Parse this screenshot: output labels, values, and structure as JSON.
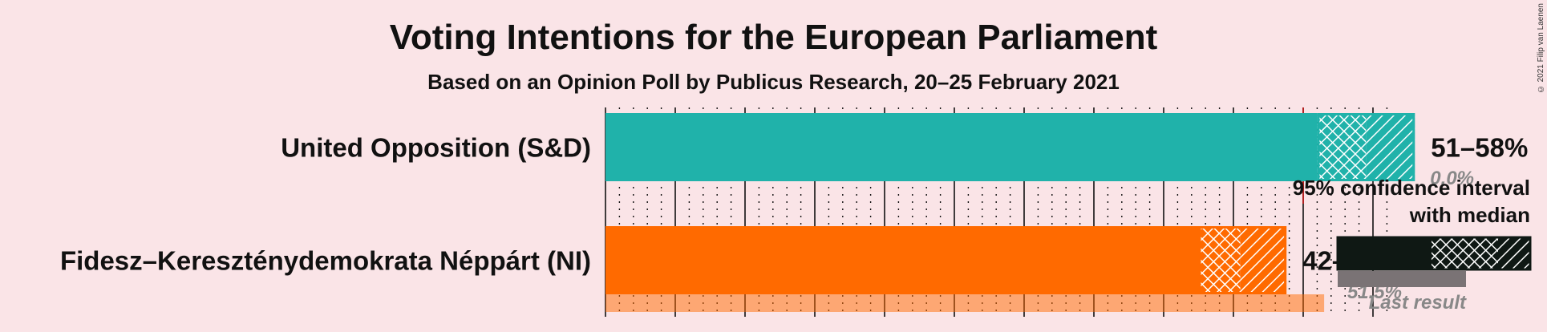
{
  "title": "Voting Intentions for the European Parliament",
  "subtitle": "Based on an Opinion Poll by Publicus Research, 20–25 February 2021",
  "copyright": "© 2021 Filip van Laenen",
  "colors": {
    "background": "#fae4e7",
    "legend_dark": "#0f1814",
    "last_result_bar": "#7a7375",
    "majority_line": "#b22222"
  },
  "chart_data": {
    "type": "bar",
    "orientation": "horizontal",
    "xlim": [
      0,
      58
    ],
    "grid_major_step": 5,
    "grid_minor_step": 1,
    "majority_threshold": 50,
    "series": [
      {
        "party": "United Opposition (S&D)",
        "color": "#20b2aa",
        "ci_low": 51,
        "median": 54.5,
        "ci_high": 58,
        "range_label": "51–58%",
        "last_result": 0.0,
        "last_result_label": "0.0%"
      },
      {
        "party": "Fidesz–Kereszténydemokrata Néppárt (NI)",
        "color": "#ff6a00",
        "ci_low": 42.5,
        "median": 45.5,
        "ci_high": 48.8,
        "range_label": "42–49%",
        "last_result": 51.5,
        "last_result_label": "51.5%"
      }
    ]
  },
  "legend": {
    "ci_line1": "95% confidence interval",
    "ci_line2": "with median",
    "last_result": "Last result"
  }
}
